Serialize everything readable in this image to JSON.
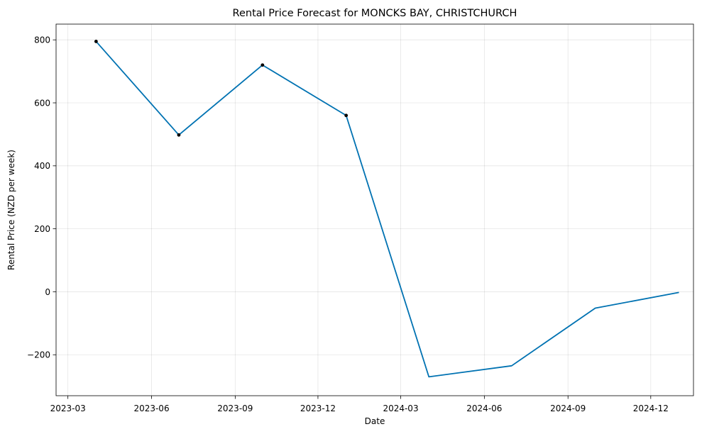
{
  "chart_data": {
    "type": "line",
    "title": "Rental Price Forecast for MONCKS BAY, CHRISTCHURCH",
    "xlabel": "Date",
    "ylabel": "Rental Price (NZD per week)",
    "xlim": [
      "2023-02-16",
      "2025-01-17"
    ],
    "ylim": [
      -330,
      850
    ],
    "x_ticks": [
      "2023-03",
      "2023-06",
      "2023-09",
      "2023-12",
      "2024-03",
      "2024-06",
      "2024-09",
      "2024-12"
    ],
    "y_ticks": [
      -200,
      0,
      200,
      400,
      600,
      800
    ],
    "grid": true,
    "series": [
      {
        "color": "#0072b2",
        "x": [
          "2023-04-01",
          "2023-07-01",
          "2023-10-01",
          "2024-01-01",
          "2024-04-01",
          "2024-07-01",
          "2024-10-01",
          "2025-01-01"
        ],
        "values": [
          795,
          498,
          720,
          560,
          -270,
          -235,
          -52,
          -2
        ]
      }
    ],
    "observed_points": {
      "color": "#000000",
      "x": [
        "2023-04-01",
        "2023-07-01",
        "2023-10-01",
        "2024-01-01"
      ],
      "values": [
        795,
        498,
        720,
        560
      ]
    }
  }
}
